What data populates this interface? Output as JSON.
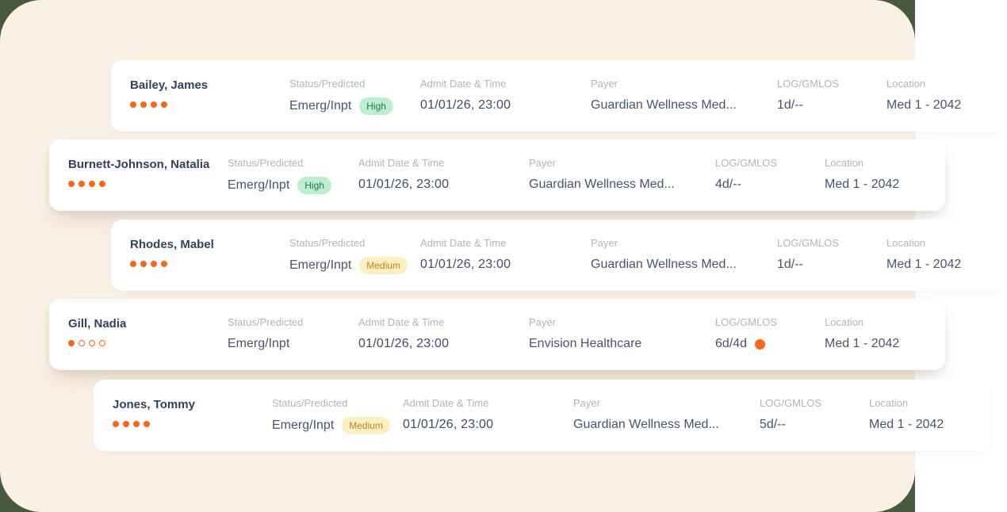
{
  "theme": {
    "bg": "#FAF0E4",
    "backdrop": "#47593F",
    "card": "#FFFFFF",
    "label": "#AEB5C0",
    "value": "#48556B",
    "name": "#33415C",
    "orange": "#F9671B",
    "badge_high_bg": "#BDEFCE",
    "badge_high_fg": "#1C7A4E",
    "badge_med_bg": "#FBF0C2",
    "badge_med_fg": "#C47F1E"
  },
  "columns": {
    "status": "Status/Predicted",
    "admit": "Admit Date & Time",
    "payer": "Payer",
    "log": "LOG/GMLOS",
    "location": "Location"
  },
  "rows": [
    {
      "name": "Bailey, James",
      "acuity": {
        "filled": 4,
        "total": 4
      },
      "status": "Emerg/Inpt",
      "predicted": "High",
      "admit": "01/01/26, 23:00",
      "payer": "Guardian Wellness Med...",
      "log_gmlos": "1d/--",
      "gmlos_alert": false,
      "location": "Med 1 - 2042"
    },
    {
      "name": "Burnett-Johnson, Natalia",
      "acuity": {
        "filled": 4,
        "total": 4
      },
      "status": "Emerg/Inpt",
      "predicted": "High",
      "admit": "01/01/26, 23:00",
      "payer": "Guardian Wellness Med...",
      "log_gmlos": "4d/--",
      "gmlos_alert": false,
      "location": "Med 1 - 2042"
    },
    {
      "name": "Rhodes, Mabel",
      "acuity": {
        "filled": 4,
        "total": 4
      },
      "status": "Emerg/Inpt",
      "predicted": "Medium",
      "admit": "01/01/26, 23:00",
      "payer": "Guardian Wellness Med...",
      "log_gmlos": "1d/--",
      "gmlos_alert": false,
      "location": "Med 1 - 2042"
    },
    {
      "name": "Gill, Nadia",
      "acuity": {
        "filled": 1,
        "total": 4
      },
      "status": "Emerg/Inpt",
      "predicted": null,
      "admit": "01/01/26, 23:00",
      "payer": "Envision Healthcare",
      "log_gmlos": "6d/4d",
      "gmlos_alert": true,
      "location": "Med 1 - 2042"
    },
    {
      "name": "Jones, Tommy",
      "acuity": {
        "filled": 4,
        "total": 4
      },
      "status": "Emerg/Inpt",
      "predicted": "Medium",
      "admit": "01/01/26, 23:00",
      "payer": "Guardian Wellness Med...",
      "log_gmlos": "5d/--",
      "gmlos_alert": false,
      "location": "Med 1 - 2042"
    }
  ]
}
